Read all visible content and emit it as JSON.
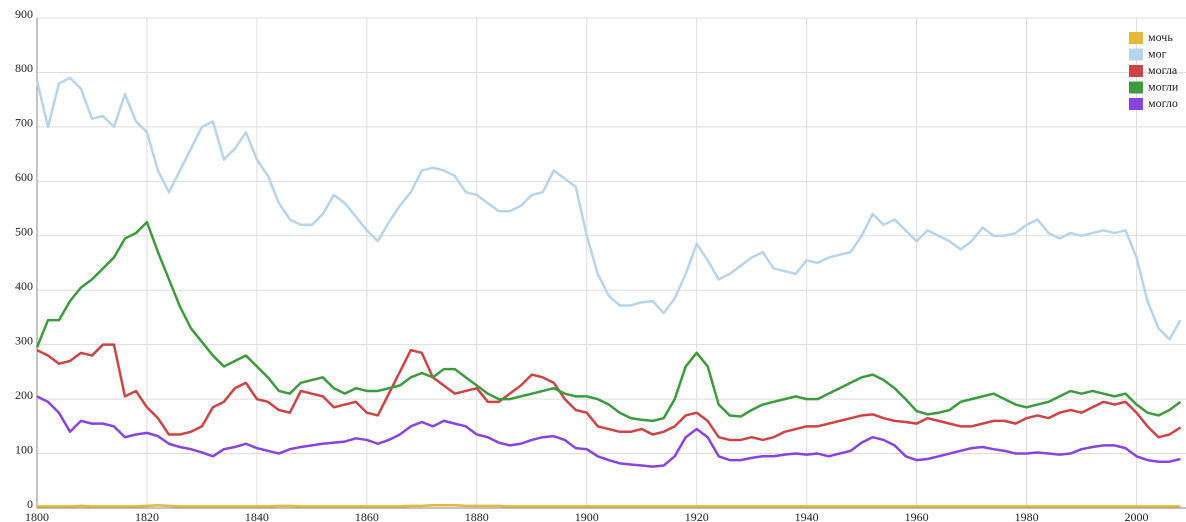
{
  "chart_data": {
    "type": "line",
    "x": [
      1800,
      1802,
      1804,
      1806,
      1808,
      1810,
      1812,
      1814,
      1816,
      1818,
      1820,
      1822,
      1824,
      1826,
      1828,
      1830,
      1832,
      1834,
      1836,
      1838,
      1840,
      1842,
      1844,
      1846,
      1848,
      1850,
      1852,
      1854,
      1856,
      1858,
      1860,
      1862,
      1864,
      1866,
      1868,
      1870,
      1872,
      1874,
      1876,
      1878,
      1880,
      1882,
      1884,
      1886,
      1888,
      1890,
      1892,
      1894,
      1896,
      1898,
      1900,
      1902,
      1904,
      1906,
      1908,
      1910,
      1912,
      1914,
      1916,
      1918,
      1920,
      1922,
      1924,
      1926,
      1928,
      1930,
      1932,
      1934,
      1936,
      1938,
      1940,
      1942,
      1944,
      1946,
      1948,
      1950,
      1952,
      1954,
      1956,
      1958,
      1960,
      1962,
      1964,
      1966,
      1968,
      1970,
      1972,
      1974,
      1976,
      1978,
      1980,
      1982,
      1984,
      1986,
      1988,
      1990,
      1992,
      1994,
      1996,
      1998,
      2000,
      2002,
      2004,
      2006,
      2008
    ],
    "series": [
      {
        "name": "мочь",
        "color": "#e8b83a",
        "values": [
          3,
          3,
          3,
          3,
          4,
          3,
          3,
          3,
          3,
          3,
          4,
          5,
          4,
          3,
          3,
          3,
          3,
          3,
          3,
          3,
          3,
          3,
          4,
          4,
          3,
          3,
          3,
          3,
          3,
          3,
          3,
          3,
          3,
          3,
          4,
          4,
          5,
          5,
          5,
          4,
          4,
          4,
          4,
          3,
          3,
          3,
          3,
          3,
          3,
          3,
          3,
          3,
          3,
          3,
          3,
          3,
          3,
          3,
          3,
          3,
          3,
          3,
          3,
          3,
          3,
          3,
          3,
          3,
          3,
          3,
          3,
          3,
          3,
          3,
          3,
          3,
          3,
          3,
          3,
          3,
          3,
          3,
          3,
          3,
          3,
          3,
          3,
          3,
          3,
          3,
          3,
          3,
          3,
          3,
          3,
          3,
          3,
          3,
          3,
          3,
          3,
          3,
          3,
          3,
          3
        ]
      },
      {
        "name": "мог",
        "color": "#b8d4ea",
        "values": [
          785,
          700,
          780,
          790,
          770,
          715,
          720,
          700,
          760,
          710,
          690,
          620,
          580,
          620,
          660,
          700,
          710,
          640,
          660,
          690,
          640,
          610,
          560,
          530,
          520,
          520,
          540,
          575,
          560,
          535,
          510,
          490,
          525,
          555,
          580,
          620,
          625,
          620,
          610,
          580,
          575,
          560,
          545,
          545,
          555,
          575,
          580,
          620,
          605,
          590,
          500,
          430,
          390,
          372,
          372,
          378,
          380,
          358,
          385,
          430,
          485,
          455,
          420,
          430,
          445,
          460,
          470,
          440,
          435,
          430,
          455,
          450,
          460,
          465,
          470,
          500,
          540,
          520,
          530,
          510,
          490,
          510,
          500,
          490,
          475,
          490,
          515,
          500,
          500,
          505,
          520,
          530,
          505,
          495,
          505,
          500,
          505,
          510,
          505,
          510,
          460,
          380,
          330,
          310,
          345
        ]
      },
      {
        "name": "могла",
        "color": "#cc4444",
        "values": [
          290,
          280,
          265,
          270,
          285,
          280,
          300,
          300,
          205,
          215,
          185,
          165,
          135,
          135,
          140,
          150,
          185,
          195,
          220,
          230,
          200,
          195,
          180,
          175,
          215,
          210,
          205,
          185,
          190,
          195,
          175,
          170,
          210,
          250,
          290,
          285,
          240,
          225,
          210,
          215,
          220,
          195,
          195,
          210,
          225,
          245,
          240,
          230,
          200,
          180,
          175,
          150,
          145,
          140,
          140,
          145,
          135,
          140,
          150,
          170,
          175,
          160,
          130,
          125,
          125,
          130,
          125,
          130,
          140,
          145,
          150,
          150,
          155,
          160,
          165,
          170,
          172,
          165,
          160,
          158,
          155,
          165,
          160,
          155,
          150,
          150,
          155,
          160,
          160,
          155,
          165,
          170,
          165,
          175,
          180,
          175,
          185,
          195,
          190,
          195,
          175,
          150,
          130,
          135,
          148
        ]
      },
      {
        "name": "могли",
        "color": "#3d9a3d",
        "values": [
          295,
          345,
          345,
          380,
          405,
          420,
          440,
          460,
          495,
          505,
          525,
          470,
          420,
          370,
          330,
          305,
          280,
          260,
          270,
          280,
          260,
          240,
          215,
          210,
          230,
          235,
          240,
          220,
          210,
          220,
          215,
          215,
          220,
          225,
          240,
          248,
          240,
          255,
          255,
          240,
          225,
          210,
          200,
          200,
          205,
          210,
          215,
          220,
          210,
          205,
          205,
          200,
          190,
          175,
          165,
          162,
          160,
          165,
          200,
          260,
          285,
          260,
          190,
          170,
          168,
          180,
          190,
          195,
          200,
          205,
          200,
          200,
          210,
          220,
          230,
          240,
          245,
          235,
          220,
          200,
          178,
          172,
          175,
          180,
          195,
          200,
          205,
          210,
          200,
          190,
          185,
          190,
          195,
          205,
          215,
          210,
          215,
          210,
          205,
          210,
          190,
          175,
          170,
          180,
          195
        ]
      },
      {
        "name": "могло",
        "color": "#8844dd",
        "values": [
          205,
          195,
          175,
          140,
          160,
          155,
          155,
          150,
          130,
          135,
          138,
          132,
          118,
          112,
          108,
          102,
          95,
          108,
          112,
          118,
          110,
          105,
          100,
          108,
          112,
          115,
          118,
          120,
          122,
          128,
          125,
          118,
          125,
          135,
          150,
          158,
          150,
          160,
          155,
          150,
          135,
          130,
          120,
          115,
          118,
          125,
          130,
          132,
          125,
          110,
          108,
          95,
          88,
          82,
          80,
          78,
          76,
          78,
          95,
          130,
          145,
          130,
          95,
          88,
          88,
          92,
          95,
          95,
          98,
          100,
          98,
          100,
          95,
          100,
          105,
          120,
          130,
          125,
          115,
          95,
          88,
          90,
          95,
          100,
          105,
          110,
          112,
          108,
          105,
          100,
          100,
          102,
          100,
          98,
          100,
          108,
          112,
          115,
          115,
          110,
          95,
          88,
          85,
          85,
          90
        ]
      }
    ],
    "xlim": [
      1800,
      2009
    ],
    "xticks": [
      1800,
      1820,
      1840,
      1860,
      1880,
      1900,
      1920,
      1940,
      1960,
      1980,
      2000
    ],
    "ylim": [
      0,
      900
    ],
    "yticks": [
      0,
      100,
      200,
      300,
      400,
      500,
      600,
      700,
      800,
      900
    ],
    "grid": true,
    "legend": "top-right"
  }
}
